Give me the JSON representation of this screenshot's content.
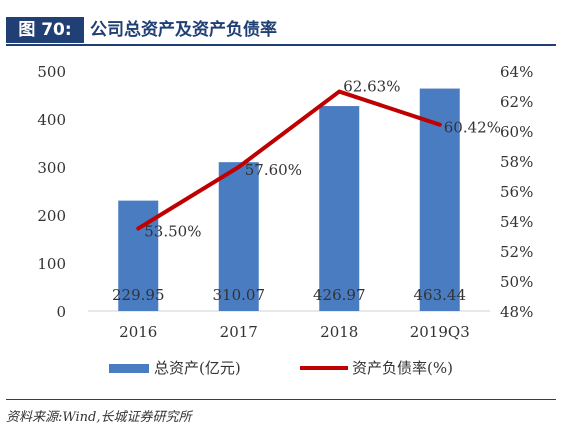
{
  "header": {
    "figure_label": "图 70:",
    "title": "公司总资产及资产负债率"
  },
  "source": "资料来源:Wind,长城证券研究所",
  "colors": {
    "bar": "#4a7cc2",
    "line": "#c00000",
    "header_bg": "#1f3f75"
  },
  "chart_data": {
    "type": "bar",
    "categories": [
      "2016",
      "2017",
      "2018",
      "2019Q3"
    ],
    "series": [
      {
        "name": "总资产(亿元)",
        "type": "bar",
        "axis": "left",
        "values": [
          229.95,
          310.07,
          426.97,
          463.44
        ],
        "labels": [
          "229.95",
          "310.07",
          "426.97",
          "463.44"
        ]
      },
      {
        "name": "资产负债率(%)",
        "type": "line",
        "axis": "right",
        "values": [
          53.5,
          57.6,
          62.63,
          60.42
        ],
        "labels": [
          "53.50%",
          "57.60%",
          "62.63%",
          "60.42%"
        ]
      }
    ],
    "y_left": {
      "min": 0,
      "max": 500,
      "ticks": [
        "0",
        "100",
        "200",
        "300",
        "400",
        "500"
      ]
    },
    "y_right": {
      "min": 48,
      "max": 64,
      "ticks": [
        "48%",
        "50%",
        "52%",
        "54%",
        "56%",
        "58%",
        "60%",
        "62%",
        "64%"
      ]
    },
    "legend": "bottom",
    "grid": false
  }
}
